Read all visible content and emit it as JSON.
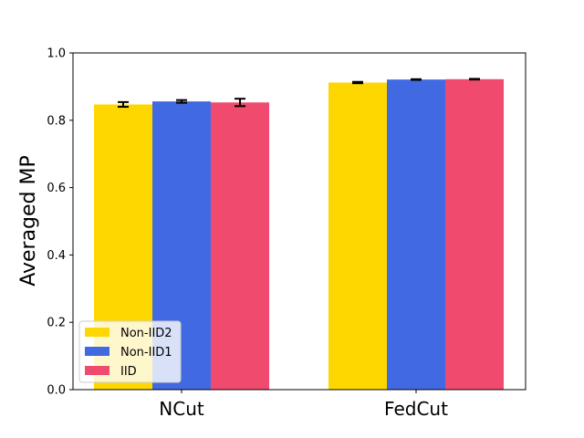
{
  "chart_data": {
    "type": "bar",
    "categories": [
      "NCut",
      "FedCut"
    ],
    "series": [
      {
        "name": "Non-IID2",
        "color": "#FFD700",
        "values": [
          0.847,
          0.912
        ],
        "errors": [
          0.007,
          0.002
        ]
      },
      {
        "name": "Non-IID1",
        "color": "#4169E1",
        "values": [
          0.856,
          0.921
        ],
        "errors": [
          0.004,
          0.001
        ]
      },
      {
        "name": "IID",
        "color": "#F04A6E",
        "values": [
          0.853,
          0.922
        ],
        "errors": [
          0.011,
          0.001
        ]
      }
    ],
    "ylabel": "Averaged MP",
    "xlabel": "",
    "ylim": [
      0,
      1.0
    ],
    "yticks": [
      "0.0",
      "0.2",
      "0.4",
      "0.6",
      "0.8",
      "1.0"
    ],
    "legend_position": "lower-left",
    "grid": false
  }
}
